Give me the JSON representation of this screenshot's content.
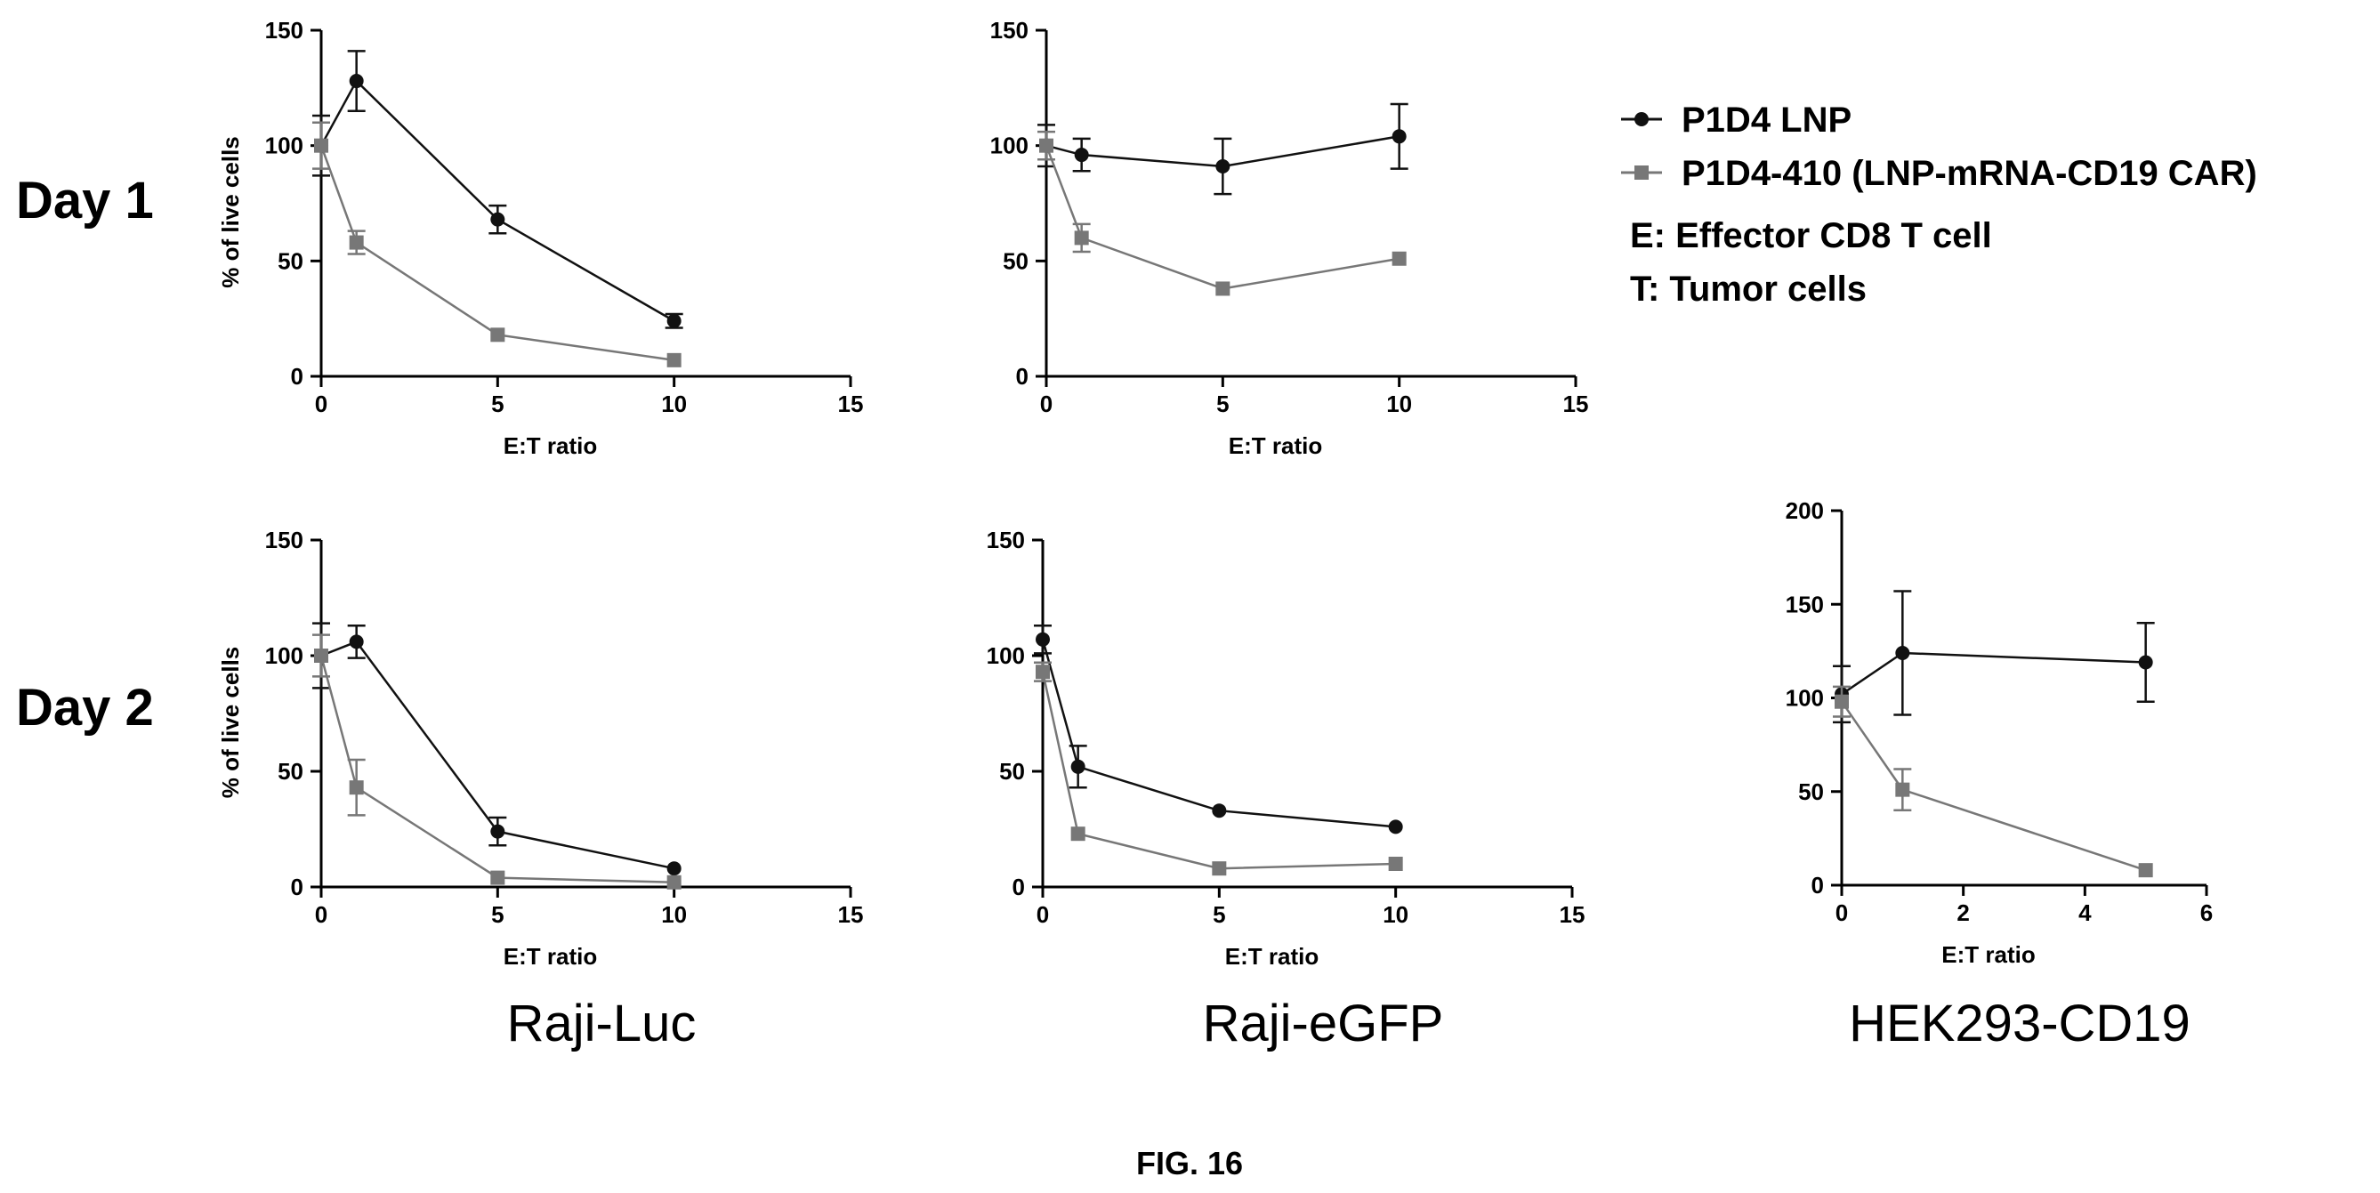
{
  "figure_label": "FIG. 16",
  "row_labels": [
    "Day 1",
    "Day 2"
  ],
  "column_titles": [
    "Raji-Luc",
    "Raji-eGFP",
    "HEK293-CD19"
  ],
  "legend": {
    "series": [
      {
        "name": "P1D4 LNP",
        "marker": "circle",
        "color": "#111111"
      },
      {
        "name": "P1D4-410 (LNP-mRNA-CD19 CAR)",
        "marker": "square",
        "color": "#777777"
      }
    ],
    "notes": [
      "E: Effector CD8 T cell",
      "T: Tumor cells"
    ]
  },
  "chart_data": [
    {
      "type": "line",
      "panel": "Day 1 / Raji-Luc",
      "xlabel": "E:T ratio",
      "ylabel": "% of live cells",
      "xlim": [
        0,
        15
      ],
      "xticks": [
        0,
        5,
        10,
        15
      ],
      "ylim": [
        0,
        150
      ],
      "yticks": [
        0,
        50,
        100,
        150
      ],
      "series": [
        {
          "name": "P1D4 LNP",
          "x": [
            0,
            1,
            5,
            10
          ],
          "y": [
            100,
            128,
            68,
            24
          ],
          "err": [
            13,
            13,
            6,
            3
          ]
        },
        {
          "name": "P1D4-410 (LNP-mRNA-CD19 CAR)",
          "x": [
            0,
            1,
            5,
            10
          ],
          "y": [
            100,
            58,
            18,
            7
          ],
          "err": [
            10,
            5,
            1,
            1
          ]
        }
      ]
    },
    {
      "type": "line",
      "panel": "Day 1 / Raji-eGFP",
      "xlabel": "E:T ratio",
      "ylabel": "",
      "xlim": [
        0,
        15
      ],
      "xticks": [
        0,
        5,
        10,
        15
      ],
      "ylim": [
        0,
        150
      ],
      "yticks": [
        0,
        50,
        100,
        150
      ],
      "series": [
        {
          "name": "P1D4 LNP",
          "x": [
            0,
            1,
            5,
            10
          ],
          "y": [
            100,
            96,
            91,
            104
          ],
          "err": [
            9,
            7,
            12,
            14
          ]
        },
        {
          "name": "P1D4-410 (LNP-mRNA-CD19 CAR)",
          "x": [
            0,
            1,
            5,
            10
          ],
          "y": [
            100,
            60,
            38,
            51
          ],
          "err": [
            6,
            6,
            1,
            1
          ]
        }
      ]
    },
    {
      "type": "line",
      "panel": "Day 2 / Raji-Luc",
      "xlabel": "E:T ratio",
      "ylabel": "% of live cells",
      "xlim": [
        0,
        15
      ],
      "xticks": [
        0,
        5,
        10,
        15
      ],
      "ylim": [
        0,
        150
      ],
      "yticks": [
        0,
        50,
        100,
        150
      ],
      "series": [
        {
          "name": "P1D4 LNP",
          "x": [
            0,
            1,
            5,
            10
          ],
          "y": [
            100,
            106,
            24,
            8
          ],
          "err": [
            14,
            7,
            6,
            1
          ]
        },
        {
          "name": "P1D4-410 (LNP-mRNA-CD19 CAR)",
          "x": [
            0,
            1,
            5,
            10
          ],
          "y": [
            100,
            43,
            4,
            2
          ],
          "err": [
            9,
            12,
            1,
            1
          ]
        }
      ]
    },
    {
      "type": "line",
      "panel": "Day 2 / Raji-eGFP",
      "xlabel": "E:T ratio",
      "ylabel": "",
      "xlim": [
        0,
        15
      ],
      "xticks": [
        0,
        5,
        10,
        15
      ],
      "ylim": [
        0,
        150
      ],
      "yticks": [
        0,
        50,
        100,
        150
      ],
      "series": [
        {
          "name": "P1D4 LNP",
          "x": [
            0,
            1,
            5,
            10
          ],
          "y": [
            107,
            52,
            33,
            26
          ],
          "err": [
            6,
            9,
            1,
            1
          ]
        },
        {
          "name": "P1D4-410 (LNP-mRNA-CD19 CAR)",
          "x": [
            0,
            1,
            5,
            10
          ],
          "y": [
            93,
            23,
            8,
            10
          ],
          "err": [
            4,
            1,
            1,
            1
          ]
        }
      ]
    },
    {
      "type": "line",
      "panel": "Day 2 / HEK293-CD19",
      "xlabel": "E:T ratio",
      "ylabel": "",
      "xlim": [
        0,
        6
      ],
      "xticks": [
        0,
        2,
        4,
        6
      ],
      "ylim": [
        0,
        200
      ],
      "yticks": [
        0,
        50,
        100,
        150,
        200
      ],
      "series": [
        {
          "name": "P1D4 LNP",
          "x": [
            0,
            1,
            5
          ],
          "y": [
            102,
            124,
            119
          ],
          "err": [
            15,
            33,
            21
          ]
        },
        {
          "name": "P1D4-410 (LNP-mRNA-CD19 CAR)",
          "x": [
            0,
            1,
            5
          ],
          "y": [
            98,
            51,
            8
          ],
          "err": [
            8,
            11,
            1
          ]
        }
      ]
    }
  ]
}
